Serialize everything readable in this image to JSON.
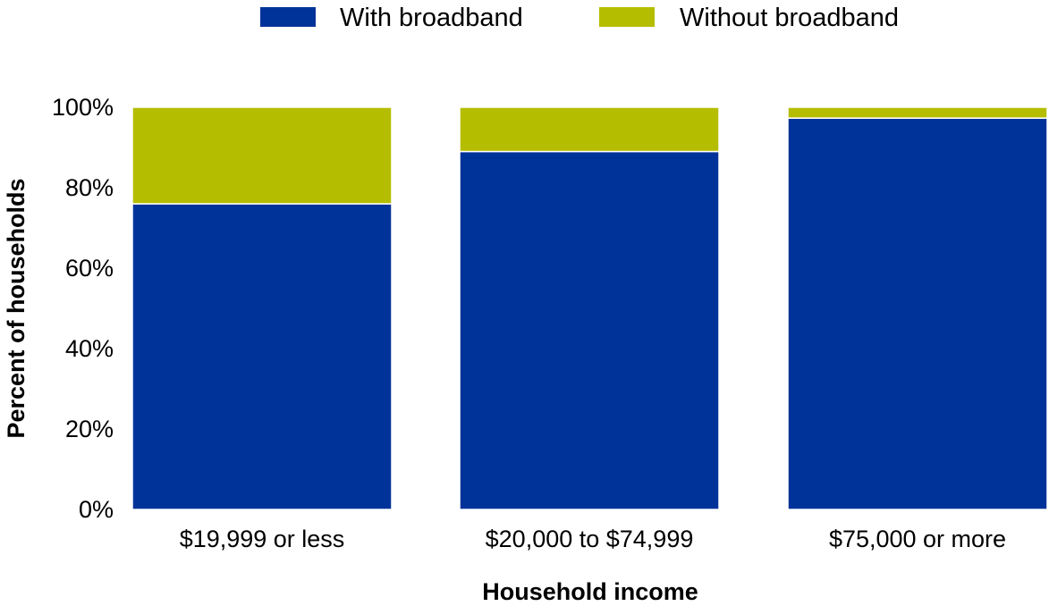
{
  "chart_data": {
    "type": "bar",
    "stacked": true,
    "categories": [
      "$19,999 or less",
      "$20,000 to $74,999",
      "$75,000 or more"
    ],
    "series": [
      {
        "name": "With broadband",
        "values": [
          76,
          89,
          97.3
        ],
        "color": "#003399"
      },
      {
        "name": "Without broadband",
        "values": [
          24,
          11,
          2.7
        ],
        "color": "#b5bd00"
      }
    ],
    "y_ticks": [
      "0%",
      "20%",
      "40%",
      "60%",
      "80%",
      "100%"
    ],
    "y_tick_values": [
      0,
      20,
      40,
      60,
      80,
      100
    ],
    "ylim": [
      0,
      100
    ],
    "xlabel": "Household income",
    "ylabel": "Percent of households",
    "grid": false,
    "legend_position": "top-center"
  }
}
